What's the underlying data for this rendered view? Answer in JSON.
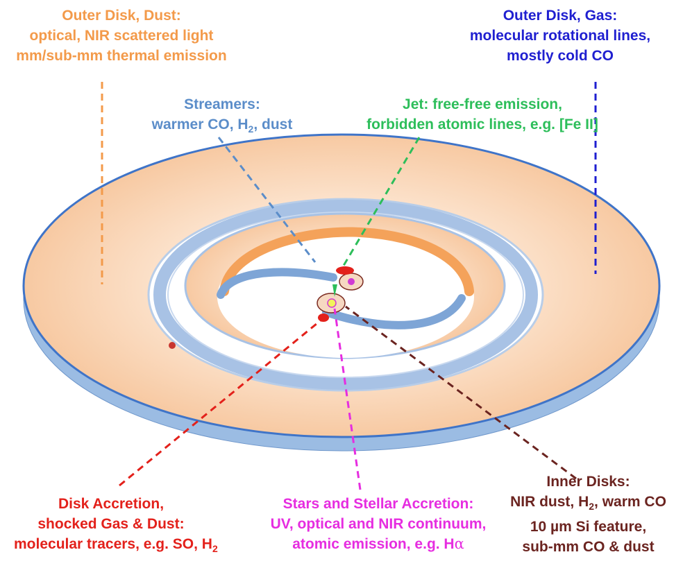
{
  "colors": {
    "orange": "#F39A4A",
    "blue": "#1F1FD0",
    "steel_blue": "#5B8DC9",
    "green": "#2DBE5A",
    "red": "#E3211B",
    "magenta": "#E62DE0",
    "brown": "#6B2420",
    "disk_fill": "#FBDCC2",
    "disk_edge": "#A9C3E6"
  },
  "labels": {
    "outer_dust": {
      "title": "Outer Disk, Dust:",
      "line1": "optical, NIR scattered light",
      "line2": "mm/sub-mm thermal emission"
    },
    "outer_gas": {
      "title": "Outer Disk, Gas:",
      "line1": "molecular rotational lines,",
      "line2": "mostly cold CO"
    },
    "streamers": {
      "title": "Streamers:",
      "line1": "warmer CO, H",
      "line1_sub": "2",
      "line1_tail": ", dust"
    },
    "jet": {
      "title": "Jet: free-free emission,",
      "line1": "forbidden atomic lines, e.g. [Fe II]"
    },
    "disk_accretion": {
      "title": "Disk Accretion,",
      "line1": "shocked Gas & Dust:",
      "line2": "molecular tracers, e.g. SO, H",
      "line2_sub": "2"
    },
    "stars": {
      "title": "Stars and Stellar Accretion:",
      "line1": "UV, optical and NIR continuum,",
      "line2": "atomic emission, e.g. H",
      "line2_greek": "α"
    },
    "inner": {
      "title": "Inner Disks:",
      "line1": "NIR dust, H",
      "line1_sub": "2",
      "line1_tail": ", warm CO",
      "line2": "10 µm Si feature,",
      "line3": "sub-mm CO & dust"
    }
  }
}
